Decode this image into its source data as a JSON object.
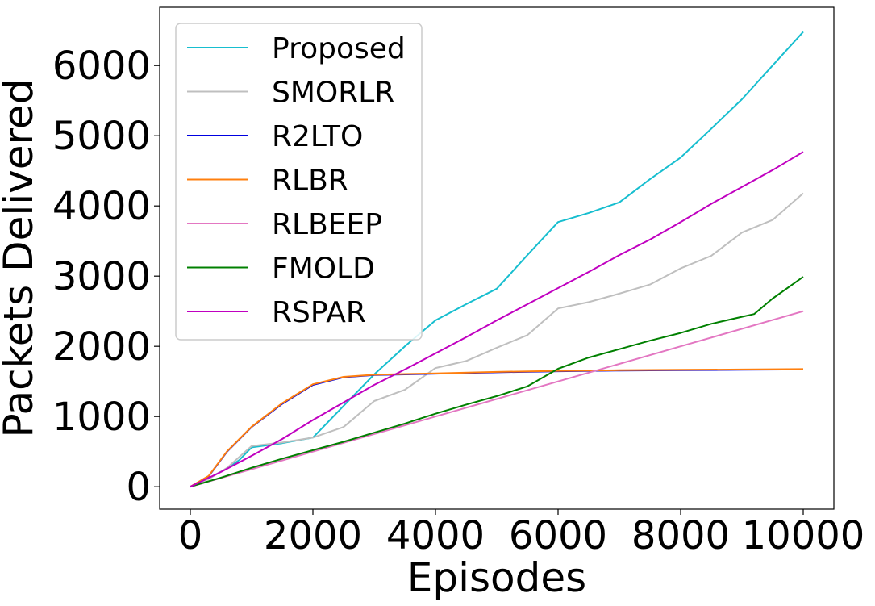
{
  "chart_data": {
    "type": "line",
    "title": "",
    "xlabel": "Episodes",
    "ylabel": "Packets Delivered",
    "xlim": [
      -500,
      10500
    ],
    "ylim": [
      -320,
      6830
    ],
    "xticks": [
      0,
      2000,
      4000,
      6000,
      8000,
      10000
    ],
    "yticks": [
      0,
      1000,
      2000,
      3000,
      4000,
      5000,
      6000
    ],
    "xtick_labels": [
      "0",
      "2000",
      "4000",
      "6000",
      "8000",
      "10000"
    ],
    "ytick_labels": [
      "0",
      "1000",
      "2000",
      "3000",
      "4000",
      "5000",
      "6000"
    ],
    "grid": false,
    "legend_position": "top-left",
    "series": [
      {
        "name": "Proposed",
        "color": "#17becf",
        "x": [
          0,
          300,
          600,
          800,
          1000,
          1500,
          2000,
          2500,
          3000,
          3500,
          4000,
          4500,
          5000,
          5500,
          6000,
          6500,
          7000,
          7500,
          8000,
          8500,
          9000,
          9500,
          10000
        ],
        "y": [
          0,
          120,
          260,
          380,
          560,
          620,
          700,
          1150,
          1600,
          2000,
          2370,
          2600,
          2820,
          3300,
          3770,
          3900,
          4050,
          4380,
          4690,
          5100,
          5520,
          6000,
          6480
        ]
      },
      {
        "name": "SMORLR",
        "color": "#bfbfbf",
        "x": [
          0,
          300,
          600,
          1000,
          1500,
          2000,
          2500,
          3000,
          3500,
          4000,
          4500,
          5000,
          5500,
          6000,
          6500,
          7000,
          7500,
          8000,
          8500,
          9000,
          9500,
          10000
        ],
        "y": [
          0,
          110,
          270,
          580,
          630,
          700,
          850,
          1220,
          1380,
          1690,
          1790,
          1980,
          2160,
          2540,
          2630,
          2750,
          2880,
          3110,
          3290,
          3620,
          3800,
          4180
        ]
      },
      {
        "name": "R2LTO",
        "color": "#0000e0",
        "x": [
          0,
          300,
          600,
          1000,
          1500,
          2000,
          2500,
          3000,
          3500,
          4000,
          5000,
          6000,
          7000,
          8000,
          9000,
          10000
        ],
        "y": [
          0,
          150,
          500,
          850,
          1180,
          1450,
          1560,
          1590,
          1600,
          1610,
          1630,
          1645,
          1655,
          1660,
          1665,
          1670
        ]
      },
      {
        "name": "RLBR",
        "color": "#ff7f0e",
        "x": [
          0,
          300,
          600,
          1000,
          1500,
          2000,
          2500,
          3000,
          3500,
          4000,
          5000,
          6000,
          7000,
          8000,
          9000,
          10000
        ],
        "y": [
          0,
          155,
          505,
          855,
          1190,
          1460,
          1565,
          1595,
          1605,
          1615,
          1635,
          1650,
          1660,
          1665,
          1670,
          1675
        ]
      },
      {
        "name": "RLBEEP",
        "color": "#e377c2",
        "x": [
          0,
          2000,
          4000,
          6000,
          8000,
          10000
        ],
        "y": [
          0,
          500,
          1000,
          1500,
          2000,
          2500
        ]
      },
      {
        "name": "FMOLD",
        "color": "#008000",
        "x": [
          0,
          500,
          1000,
          1500,
          2000,
          2500,
          3000,
          3500,
          4000,
          4500,
          5000,
          5500,
          6000,
          6500,
          7000,
          7500,
          8000,
          8500,
          9000,
          9200,
          9500,
          10000
        ],
        "y": [
          0,
          130,
          270,
          400,
          520,
          640,
          770,
          900,
          1040,
          1170,
          1290,
          1430,
          1680,
          1840,
          1960,
          2080,
          2190,
          2320,
          2420,
          2460,
          2680,
          2990
        ]
      },
      {
        "name": "RSPAR",
        "color": "#c000c0",
        "x": [
          0,
          500,
          1000,
          1500,
          2000,
          2500,
          3000,
          3500,
          4000,
          4500,
          5000,
          5500,
          6000,
          6500,
          7000,
          7500,
          8000,
          8500,
          9000,
          9500,
          10000
        ],
        "y": [
          0,
          210,
          440,
          680,
          950,
          1200,
          1450,
          1670,
          1900,
          2130,
          2370,
          2600,
          2830,
          3060,
          3300,
          3520,
          3770,
          4030,
          4270,
          4510,
          4770
        ]
      }
    ]
  }
}
